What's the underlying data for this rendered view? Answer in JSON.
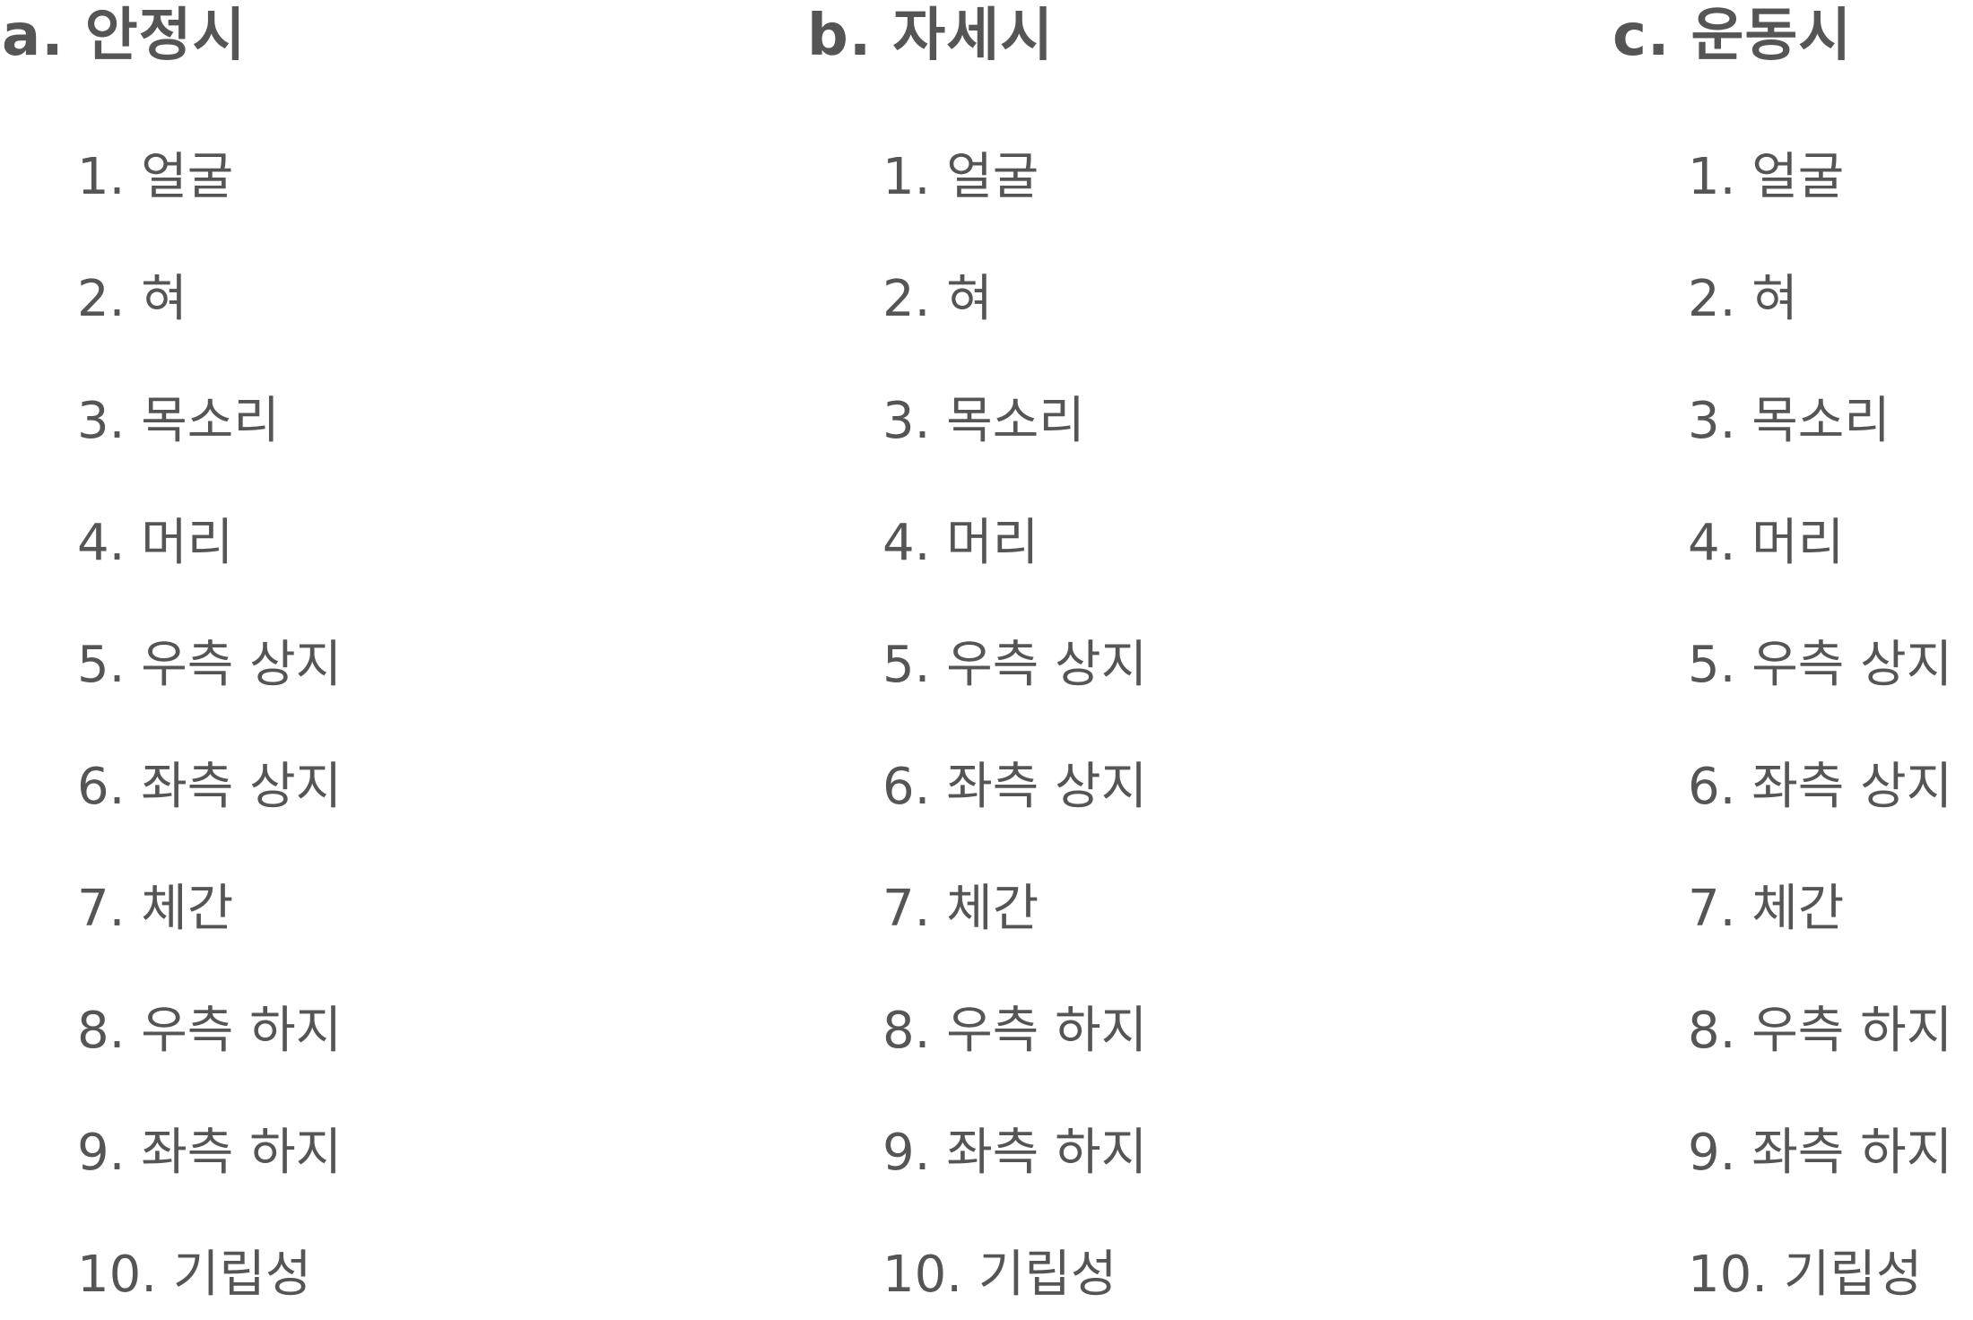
{
  "columns": [
    {
      "heading": "a. 안정시",
      "items": [
        "1. 얼굴",
        "2. 혀",
        "3. 목소리",
        "4. 머리",
        "5. 우측 상지",
        "6. 좌측 상지",
        "7. 체간",
        "8. 우측 하지",
        "9. 좌측 하지",
        "10. 기립성"
      ]
    },
    {
      "heading": "b. 자세시",
      "items": [
        "1. 얼굴",
        "2. 혀",
        "3. 목소리",
        "4. 머리",
        "5. 우측 상지",
        "6. 좌측 상지",
        "7. 체간",
        "8. 우측 하지",
        "9. 좌측 하지",
        "10. 기립성"
      ]
    },
    {
      "heading": "c. 운동시",
      "items": [
        "1. 얼굴",
        "2. 혀",
        "3. 목소리",
        "4. 머리",
        "5. 우측 상지",
        "6. 좌측 상지",
        "7. 체간",
        "8. 우측 하지",
        "9. 좌측 하지",
        "10. 기립성"
      ]
    }
  ],
  "colors": {
    "text": "#555555",
    "background": "#ffffff"
  }
}
